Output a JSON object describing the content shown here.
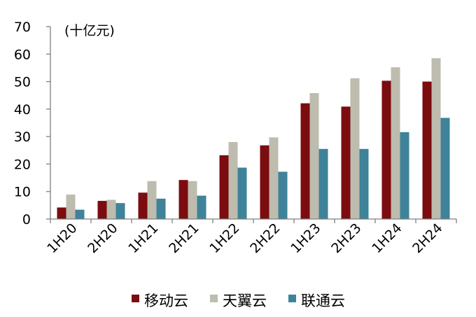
{
  "chart_data": {
    "type": "bar",
    "unit_label": "(十亿元)",
    "categories": [
      "1H20",
      "2H20",
      "1H21",
      "2H21",
      "1H22",
      "2H22",
      "1H23",
      "2H23",
      "1H24",
      "2H24"
    ],
    "series": [
      {
        "name": "移动云",
        "color": "#7b0c0f",
        "values": [
          4.2,
          6.6,
          9.6,
          14.2,
          23.2,
          26.8,
          42.1,
          40.9,
          50.3,
          50.0
        ]
      },
      {
        "name": "天翼云",
        "color": "#bdbcae",
        "values": [
          8.9,
          7.0,
          13.8,
          13.8,
          28.0,
          29.7,
          45.8,
          51.2,
          55.2,
          58.5
        ]
      },
      {
        "name": "联通云",
        "color": "#3e8399",
        "values": [
          3.4,
          5.8,
          7.4,
          8.5,
          18.7,
          17.2,
          25.5,
          25.5,
          31.6,
          36.8
        ]
      }
    ],
    "ylim": [
      0,
      70
    ],
    "yticks": [
      0,
      10,
      20,
      30,
      40,
      50,
      60,
      70
    ],
    "legend_position": "bottom",
    "grid": false
  }
}
